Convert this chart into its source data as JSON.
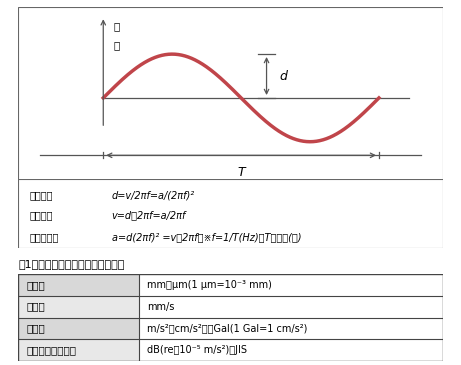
{
  "title": "表1　振動の大きさを表す実用単位",
  "table_rows": [
    [
      "変　位",
      "mm、μm(1 μm=10⁻³ mm)"
    ],
    [
      "速　度",
      "mm/s"
    ],
    [
      "加速度",
      "m/s²、cm/s²　　Gal(1 Gal=1 cm/s²)"
    ],
    [
      "振動加速度レベル",
      "dB(re・10⁻⁵ m/s²)：JIS"
    ]
  ],
  "sine_color": "#c0454a",
  "sine_linewidth": 2.5,
  "formula_lines": [
    [
      "変位振幅",
      "d=v/2πf=a/(2πf)²"
    ],
    [
      "速度振幅",
      "v=d・2πf=a/2πf"
    ],
    [
      "加速度振幅",
      "a=d(2πf)² =v・2πf　※f=1/T(Hz)、Tは周期(秒)"
    ]
  ],
  "ylabel_text": "変\n位",
  "d_label": "d",
  "T_label": "T",
  "col1_bg": "#d8d8d8",
  "col1_bg2": "#e8e8e8"
}
